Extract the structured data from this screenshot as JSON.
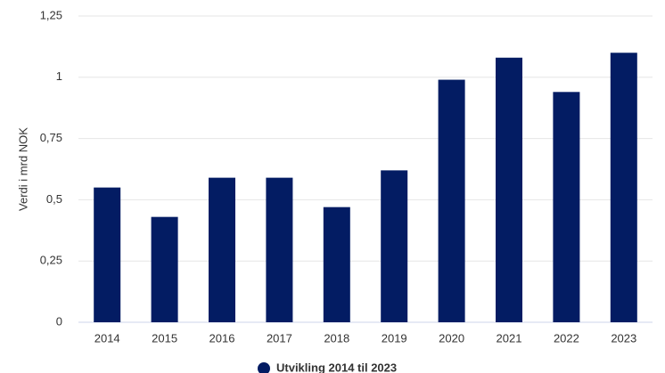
{
  "chart_data": {
    "type": "bar",
    "y_label": "Verdi i mrd NOK",
    "categories": [
      "2014",
      "2015",
      "2016",
      "2017",
      "2018",
      "2019",
      "2020",
      "2021",
      "2022",
      "2023"
    ],
    "series": [
      {
        "name": "Utvikling 2014 til 2023",
        "color": "#031c63",
        "values": [
          0.55,
          0.43,
          0.59,
          0.59,
          0.47,
          0.62,
          0.99,
          1.08,
          0.94,
          1.1
        ]
      }
    ],
    "ylim": [
      0,
      1.25
    ],
    "yticks": [
      0,
      {
        "value": 0.25,
        "label": "0,25"
      },
      {
        "value": 0.5,
        "label": "0,5"
      },
      {
        "value": 0.75,
        "label": "0,75"
      },
      1,
      {
        "value": 1.25,
        "label": "1,25"
      }
    ],
    "grid": true,
    "legend": "bottom"
  }
}
